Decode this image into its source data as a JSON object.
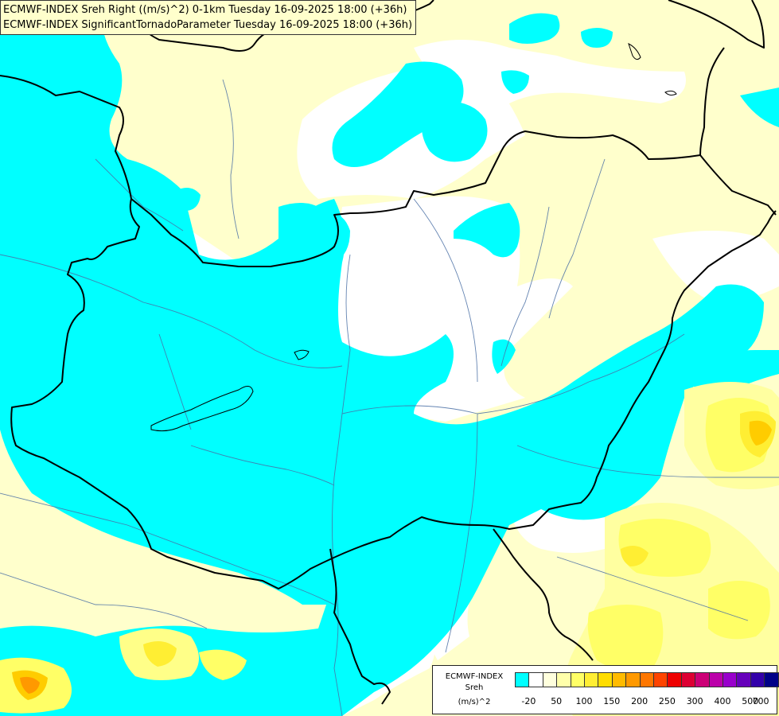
{
  "header": {
    "line1": "ECMWF-INDEX Sreh Right ((m/s)^2) 0-1km Tuesday 16-09-2025 18:00 (+36h)",
    "line2": "ECMWF-INDEX SignificantTornadoParameter Tuesday 16-09-2025 18:00 (+36h)"
  },
  "legend": {
    "title1": "ECMWF-INDEX",
    "title2": "Sreh",
    "title3": "(m/s)^2",
    "swatch_colors": [
      "#00ffff",
      "#ffffff",
      "#ffffdd",
      "#ffffaa",
      "#ffff66",
      "#ffee33",
      "#ffdd00",
      "#ffbb00",
      "#ff9900",
      "#ff7700",
      "#ff4400",
      "#ee0000",
      "#dd0033",
      "#cc0077",
      "#bb00aa",
      "#9900cc",
      "#6600bb",
      "#3300aa",
      "#000088"
    ],
    "ticks": [
      "-20",
      "50",
      "100",
      "150",
      "200",
      "250",
      "300",
      "400",
      "500",
      "700"
    ]
  },
  "colors": {
    "cyan": "#00ffff",
    "pale_yellow": "#ffffcc",
    "light_yellow": "#ffffa0",
    "yellow": "#ffff55",
    "gold": "#ffdd00",
    "orange": "#ff9900",
    "border": "#000000",
    "river": "#4a6fa5"
  }
}
